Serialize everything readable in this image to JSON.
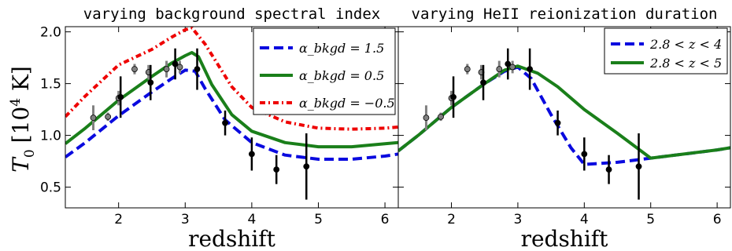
{
  "ylabel": "T_0  [10^4 K]",
  "colors": {
    "blue": "#0a0adf",
    "green": "#1a7f1a",
    "red": "#ee0000",
    "obs_black": "#000000",
    "obs_gray": "#808080"
  },
  "chart_data": [
    {
      "type": "line",
      "title": "varying background spectral index",
      "xlabel": "redshift",
      "xlim": [
        1.2,
        6.2
      ],
      "ylim": [
        0.3,
        2.05
      ],
      "xticks": [
        "2",
        "3",
        "4",
        "5",
        "6"
      ],
      "yticks": [
        "0.5",
        "1.0",
        "1.5",
        "2.0"
      ],
      "legend_position": "top-right",
      "series": [
        {
          "name": "α_bkgd = 1.5",
          "color": "blue",
          "style": "dashed",
          "x": [
            1.2,
            1.5,
            2.0,
            2.5,
            2.8,
            3.0,
            3.15,
            3.3,
            3.6,
            4.0,
            4.5,
            5.0,
            5.5,
            6.0,
            6.2
          ],
          "y": [
            0.79,
            0.93,
            1.19,
            1.42,
            1.55,
            1.63,
            1.62,
            1.45,
            1.15,
            0.93,
            0.81,
            0.77,
            0.77,
            0.8,
            0.82
          ]
        },
        {
          "name": "α_bkgd = 0.5",
          "color": "green",
          "style": "solid",
          "x": [
            1.2,
            1.5,
            2.0,
            2.5,
            2.8,
            3.0,
            3.1,
            3.2,
            3.4,
            3.7,
            4.0,
            4.5,
            5.0,
            5.5,
            6.0,
            6.2
          ],
          "y": [
            0.92,
            1.07,
            1.34,
            1.57,
            1.7,
            1.77,
            1.8,
            1.76,
            1.49,
            1.2,
            1.04,
            0.93,
            0.89,
            0.89,
            0.92,
            0.93
          ]
        },
        {
          "name": "α_bkgd = −0.5",
          "color": "red",
          "style": "dashdot",
          "x": [
            1.2,
            1.5,
            2.0,
            2.5,
            2.8,
            3.0,
            3.1,
            3.3,
            3.7,
            4.0,
            4.5,
            5.0,
            5.5,
            6.0,
            6.2
          ],
          "y": [
            1.18,
            1.38,
            1.68,
            1.83,
            1.95,
            2.02,
            2.04,
            1.88,
            1.47,
            1.27,
            1.13,
            1.07,
            1.06,
            1.07,
            1.08
          ]
        }
      ],
      "observations": [
        {
          "x": 1.62,
          "y": 1.17,
          "err": 0.12,
          "color": "obs_gray"
        },
        {
          "x": 1.84,
          "y": 1.18,
          "err": 0.04,
          "color": "obs_gray"
        },
        {
          "x": 2.0,
          "y": 1.36,
          "err": 0.07,
          "color": "obs_gray"
        },
        {
          "x": 2.03,
          "y": 1.37,
          "err": 0.2,
          "color": "obs_black"
        },
        {
          "x": 2.24,
          "y": 1.64,
          "err": 0.05,
          "color": "obs_gray"
        },
        {
          "x": 2.45,
          "y": 1.61,
          "err": 0.07,
          "color": "obs_gray"
        },
        {
          "x": 2.48,
          "y": 1.51,
          "err": 0.17,
          "color": "obs_black"
        },
        {
          "x": 2.72,
          "y": 1.64,
          "err": 0.08,
          "color": "obs_gray"
        },
        {
          "x": 2.92,
          "y": 1.66,
          "err": 0.06,
          "color": "obs_gray"
        },
        {
          "x": 2.85,
          "y": 1.69,
          "err": 0.15,
          "color": "obs_black"
        },
        {
          "x": 3.18,
          "y": 1.64,
          "err": 0.2,
          "color": "obs_black"
        },
        {
          "x": 3.6,
          "y": 1.12,
          "err": 0.12,
          "color": "obs_black"
        },
        {
          "x": 4.0,
          "y": 0.82,
          "err": 0.16,
          "color": "obs_black"
        },
        {
          "x": 4.37,
          "y": 0.67,
          "err": 0.14,
          "color": "obs_black"
        },
        {
          "x": 4.82,
          "y": 0.7,
          "err": 0.32,
          "color": "obs_black"
        }
      ]
    },
    {
      "type": "line",
      "title": "varying HeII reionization duration",
      "xlabel": "redshift",
      "xlim": [
        1.2,
        6.2
      ],
      "ylim": [
        0.3,
        2.05
      ],
      "xticks": [
        "2",
        "3",
        "4",
        "5",
        "6"
      ],
      "yticks": [],
      "legend_position": "top-right",
      "series": [
        {
          "name": "2.8 < z < 4",
          "color": "blue",
          "style": "dashed",
          "x": [
            1.2,
            1.5,
            2.0,
            2.5,
            2.8,
            3.0,
            3.2,
            3.5,
            3.8,
            4.0,
            4.5,
            5.0,
            5.5,
            6.0,
            6.2
          ],
          "y": [
            0.85,
            1.0,
            1.27,
            1.5,
            1.62,
            1.66,
            1.55,
            1.2,
            0.88,
            0.72,
            0.74,
            0.78,
            0.82,
            0.86,
            0.88
          ]
        },
        {
          "name": "2.8 < z < 5",
          "color": "green",
          "style": "solid",
          "x": [
            1.2,
            1.5,
            2.0,
            2.5,
            2.8,
            3.0,
            3.3,
            3.6,
            4.0,
            4.5,
            5.0,
            5.5,
            6.0,
            6.2
          ],
          "y": [
            0.85,
            1.0,
            1.27,
            1.5,
            1.63,
            1.67,
            1.6,
            1.47,
            1.25,
            1.02,
            0.78,
            0.82,
            0.86,
            0.88
          ]
        }
      ],
      "observations": [
        {
          "x": 1.62,
          "y": 1.17,
          "err": 0.12,
          "color": "obs_gray"
        },
        {
          "x": 1.84,
          "y": 1.18,
          "err": 0.04,
          "color": "obs_gray"
        },
        {
          "x": 2.0,
          "y": 1.36,
          "err": 0.07,
          "color": "obs_gray"
        },
        {
          "x": 2.03,
          "y": 1.37,
          "err": 0.2,
          "color": "obs_black"
        },
        {
          "x": 2.24,
          "y": 1.64,
          "err": 0.05,
          "color": "obs_gray"
        },
        {
          "x": 2.45,
          "y": 1.61,
          "err": 0.07,
          "color": "obs_gray"
        },
        {
          "x": 2.48,
          "y": 1.51,
          "err": 0.17,
          "color": "obs_black"
        },
        {
          "x": 2.72,
          "y": 1.64,
          "err": 0.08,
          "color": "obs_gray"
        },
        {
          "x": 2.92,
          "y": 1.66,
          "err": 0.06,
          "color": "obs_gray"
        },
        {
          "x": 2.85,
          "y": 1.69,
          "err": 0.15,
          "color": "obs_black"
        },
        {
          "x": 3.18,
          "y": 1.64,
          "err": 0.2,
          "color": "obs_black"
        },
        {
          "x": 3.6,
          "y": 1.12,
          "err": 0.12,
          "color": "obs_black"
        },
        {
          "x": 4.0,
          "y": 0.82,
          "err": 0.16,
          "color": "obs_black"
        },
        {
          "x": 4.37,
          "y": 0.67,
          "err": 0.14,
          "color": "obs_black"
        },
        {
          "x": 4.82,
          "y": 0.7,
          "err": 0.32,
          "color": "obs_black"
        }
      ]
    }
  ]
}
